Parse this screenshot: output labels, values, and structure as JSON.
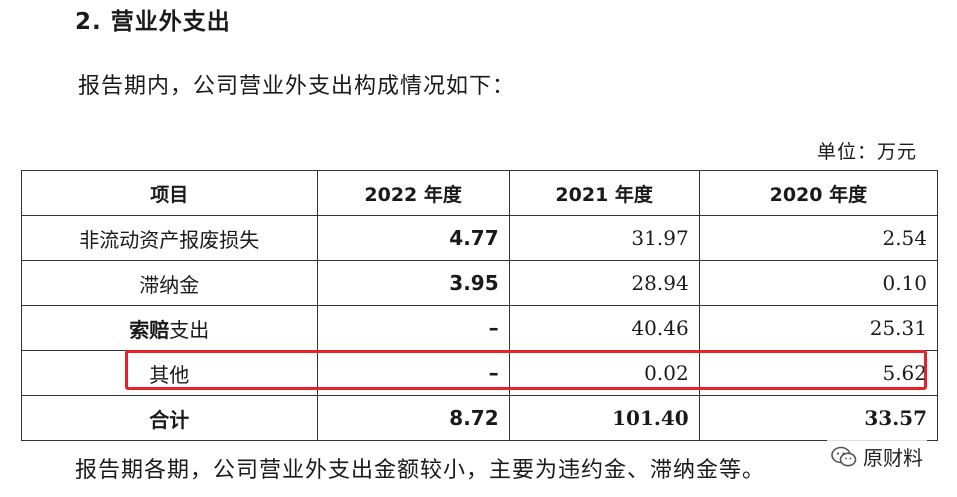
{
  "heading": "2. 营业外支出",
  "intro": "报告期内，公司营业外支出构成情况如下：",
  "unit": "单位：万元",
  "table": {
    "headers": [
      "项目",
      "2022 年度",
      "2021 年度",
      "2020 年度"
    ],
    "rows": [
      {
        "item": "非流动资产报废损失",
        "y2022": "4.77",
        "y2021": "31.97",
        "y2020": "2.54"
      },
      {
        "item": "滞纳金",
        "y2022": "3.95",
        "y2021": "28.94",
        "y2020": "0.10"
      },
      {
        "item_bold": "索赔",
        "item_rest": "支出",
        "y2022": "–",
        "y2021": "40.46",
        "y2020": "25.31"
      },
      {
        "item": "其他",
        "y2022": "–",
        "y2021": "0.02",
        "y2020": "5.62"
      }
    ],
    "total": {
      "item": "合计",
      "y2022": "8.72",
      "y2021": "101.40",
      "y2020": "33.57"
    }
  },
  "highlight": {
    "color": "#e8202a",
    "row": "其他"
  },
  "closing": "报告期各期，公司营业外支出金额较小，主要为违约金、滞纳金等。",
  "watermark": {
    "label": "原财料",
    "icon": "wechat-icon"
  }
}
